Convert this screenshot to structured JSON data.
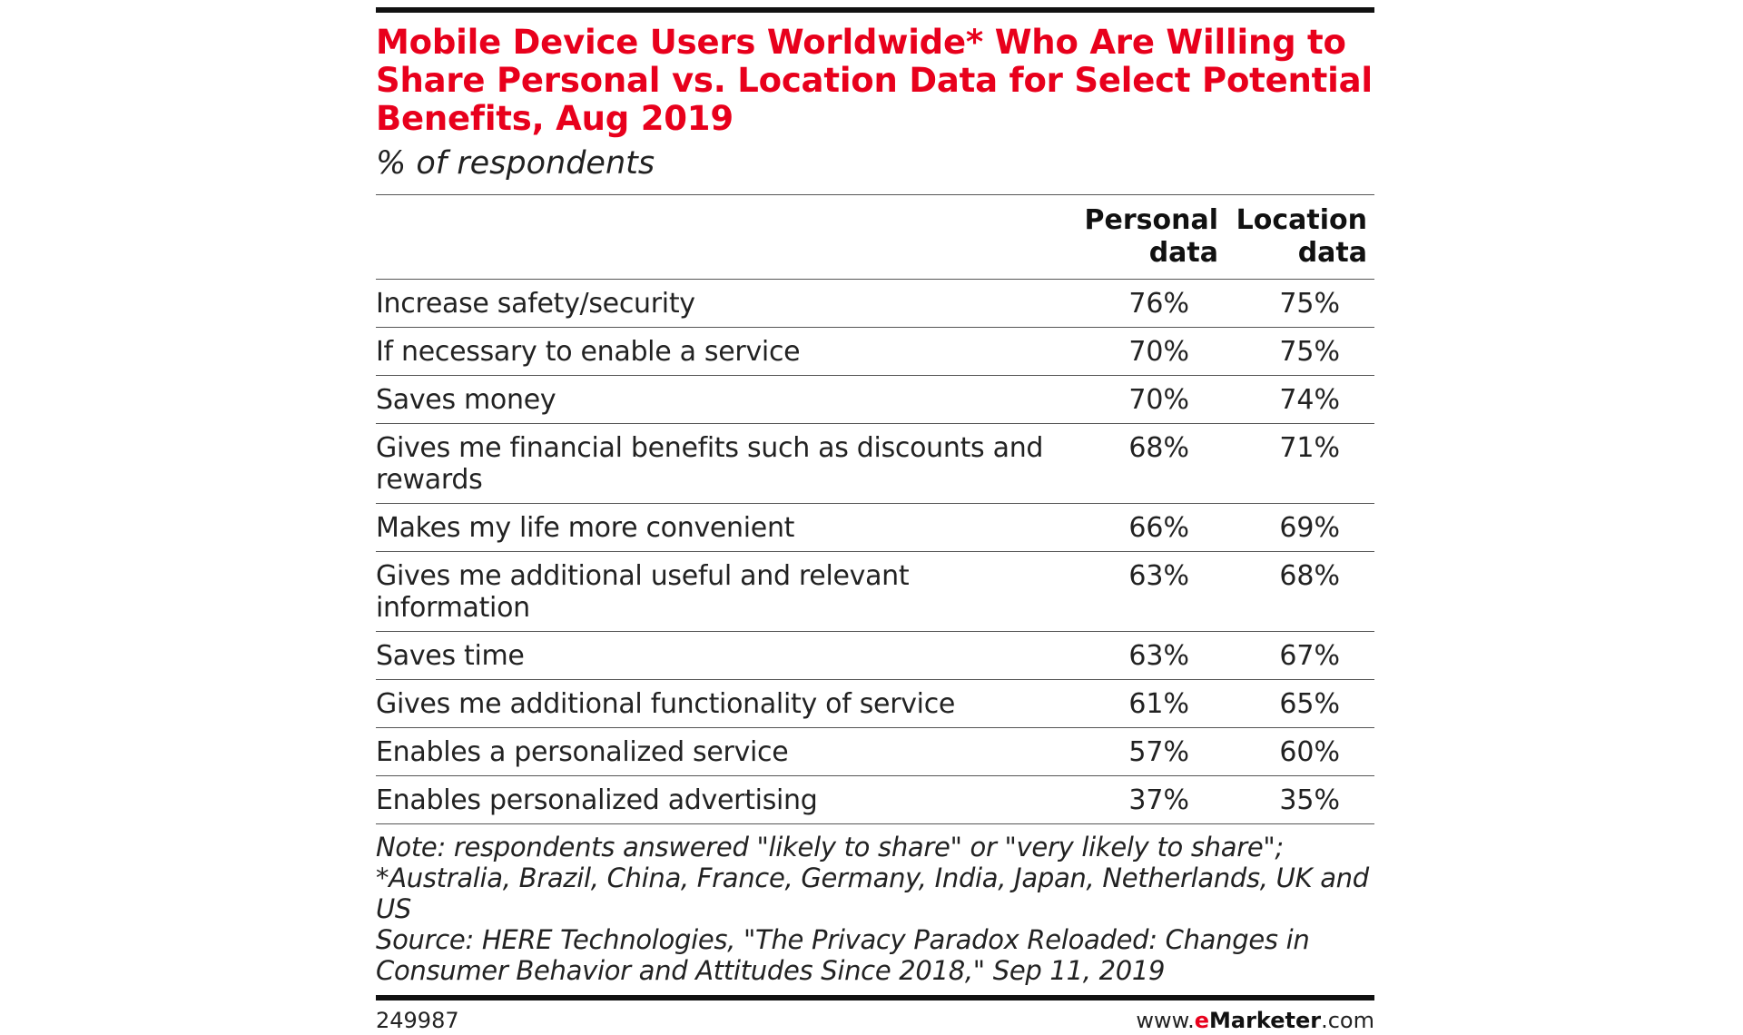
{
  "colors": {
    "title": "#e8001c",
    "rule": "#111111",
    "divider": "#555555",
    "text": "#222222",
    "brand_accent": "#e8001c"
  },
  "chart_data": {
    "type": "table",
    "title": "Mobile Device Users Worldwide* Who Are Willing to Share Personal vs. Location Data for Select Potential Benefits, Aug 2019",
    "subtitle": "% of respondents",
    "columns": [
      "Personal data",
      "Location data"
    ],
    "categories": [
      "Increase safety/security",
      "If necessary to enable a service",
      "Saves money",
      "Gives me financial benefits such as discounts and rewards",
      "Makes my life more convenient",
      "Gives me additional useful and relevant information",
      "Saves time",
      "Gives me additional functionality of service",
      "Enables a personalized service",
      "Enables personalized advertising"
    ],
    "series": [
      {
        "name": "Personal data",
        "values": [
          76,
          70,
          70,
          68,
          66,
          63,
          63,
          61,
          57,
          37
        ],
        "display": [
          "76%",
          "70%",
          "70%",
          "68%",
          "66%",
          "63%",
          "63%",
          "61%",
          "57%",
          "37%"
        ]
      },
      {
        "name": "Location data",
        "values": [
          75,
          75,
          74,
          71,
          69,
          68,
          67,
          65,
          60,
          35
        ],
        "display": [
          "75%",
          "75%",
          "74%",
          "71%",
          "69%",
          "68%",
          "67%",
          "65%",
          "60%",
          "35%"
        ]
      }
    ],
    "unit": "%"
  },
  "notes": {
    "note": "Note: respondents answered \"likely to share\" or \"very likely to share\"; *Australia, Brazil, China, France, Germany, India, Japan, Netherlands, UK and US",
    "source": "Source: HERE Technologies, \"The Privacy Paradox Reloaded: Changes in Consumer Behavior and Attitudes Since 2018,\" Sep 11, 2019"
  },
  "footer": {
    "chart_id": "249987",
    "brand_prefix": "www.",
    "brand_accent": "e",
    "brand_name": "Marketer",
    "brand_suffix": ".com"
  }
}
